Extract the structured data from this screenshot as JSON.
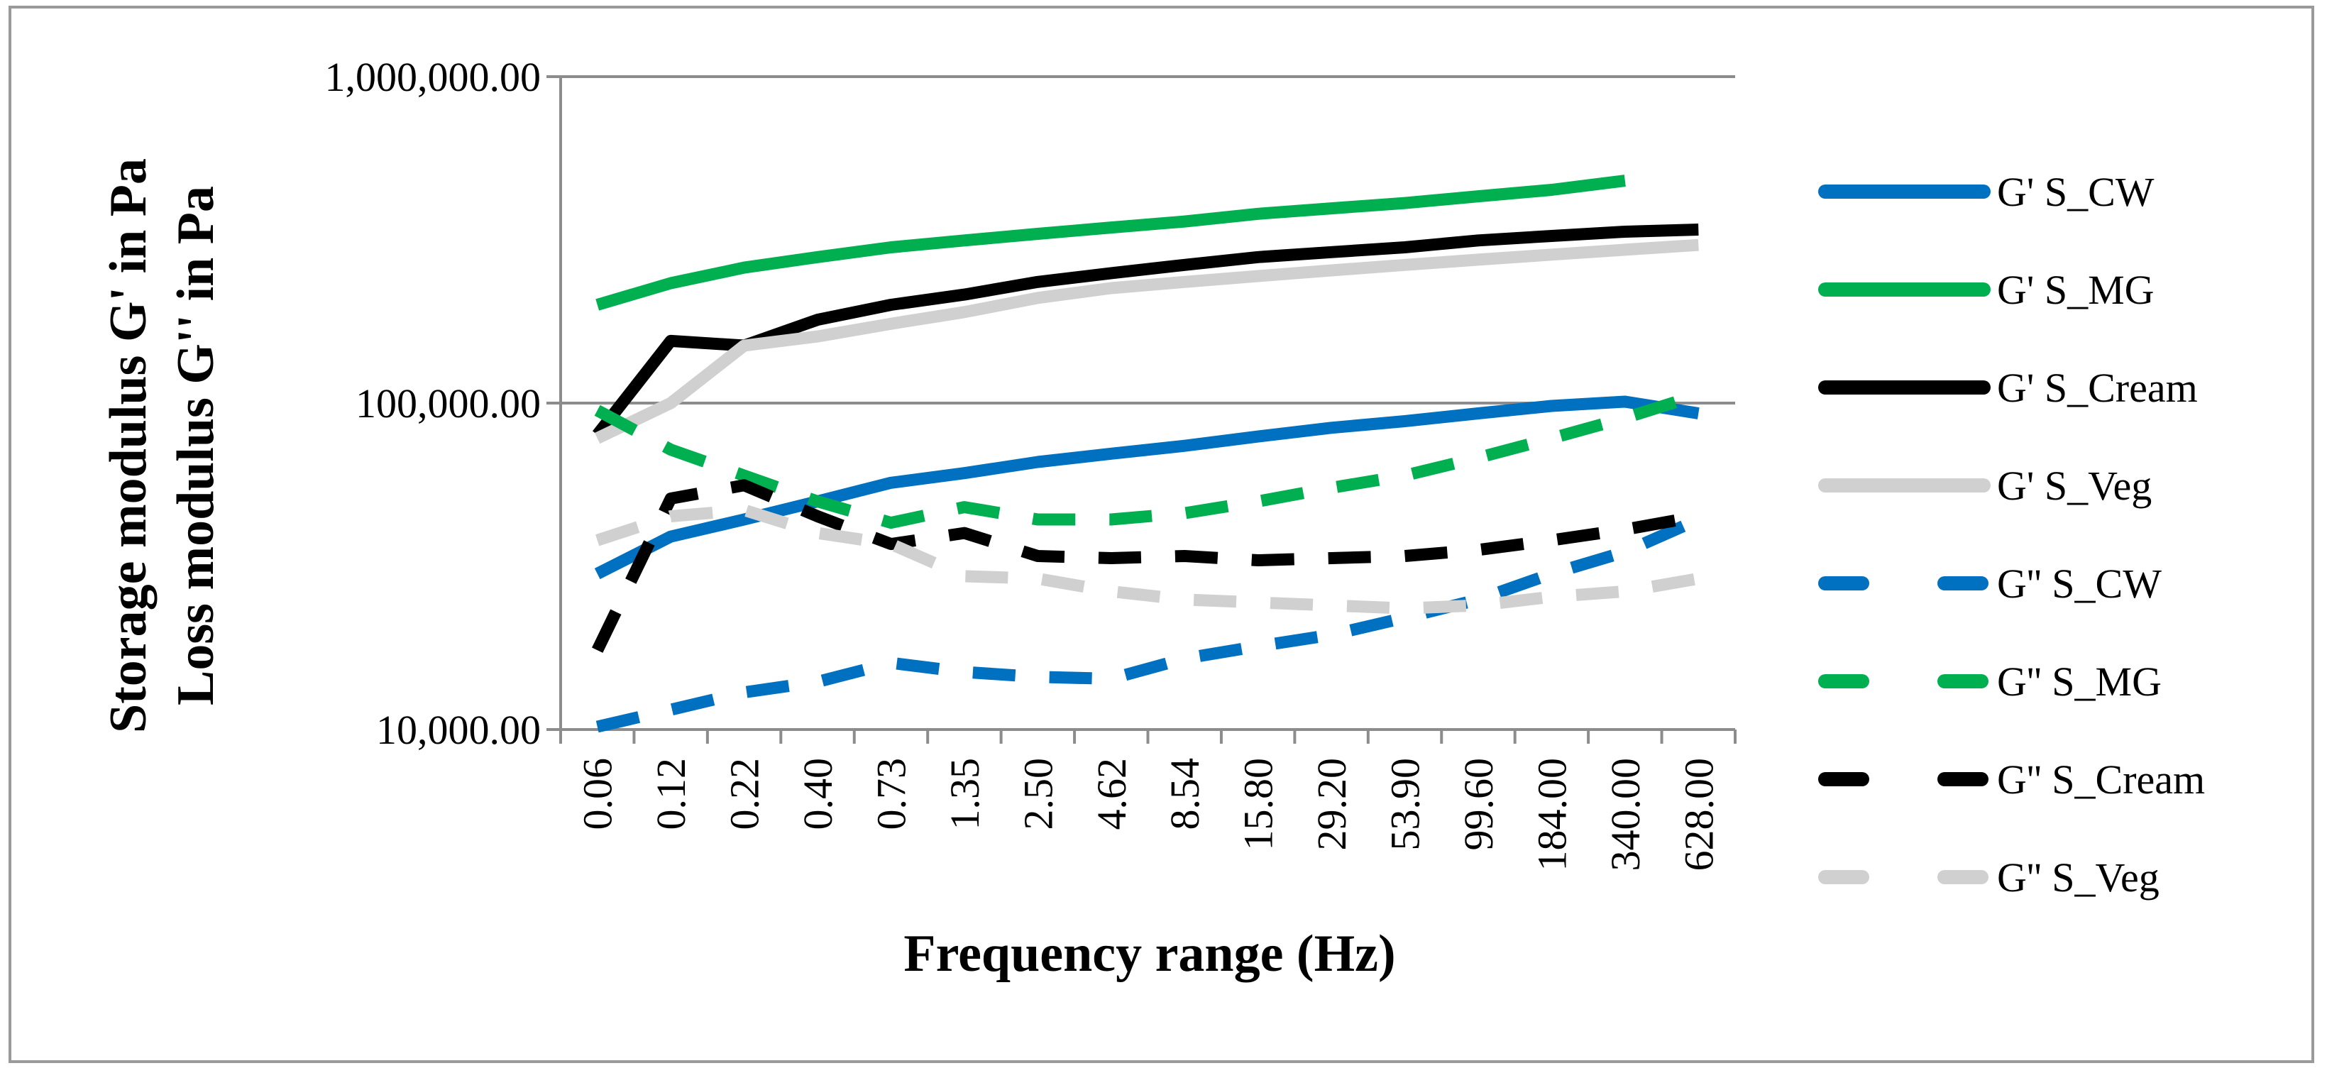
{
  "chart_data": {
    "type": "line",
    "title": "",
    "xlabel": "Frequency range (Hz)",
    "ylabel_lines": [
      "Storage modulus  G' in Pa",
      "Loss modulus G'' in Pa"
    ],
    "yscale": "log",
    "ylim": [
      10000,
      1000000
    ],
    "yticks": [
      {
        "value": 10000,
        "label": "10,000.00"
      },
      {
        "value": 100000,
        "label": "100,000.00"
      },
      {
        "value": 1000000,
        "label": "1,000,000.00"
      }
    ],
    "grid": "horizontal",
    "legend_position": "right",
    "categories": [
      "0.06",
      "0.12",
      "0.22",
      "0.40",
      "0.73",
      "1.35",
      "2.50",
      "4.62",
      "8.54",
      "15.80",
      "29.20",
      "53.90",
      "99.60",
      "184.00",
      "340.00",
      "628.00"
    ],
    "series": [
      {
        "name": "G' S_CW",
        "color": "#0070C0",
        "dash": "solid",
        "values": [
          30000,
          39000,
          44000,
          50000,
          57000,
          61000,
          66000,
          70000,
          74000,
          79000,
          84000,
          88000,
          93000,
          98000,
          101000,
          93000
        ]
      },
      {
        "name": "G' S_MG",
        "color": "#00B050",
        "dash": "solid",
        "values": [
          200000,
          233000,
          260000,
          280000,
          300000,
          315000,
          330000,
          345000,
          360000,
          380000,
          395000,
          410000,
          430000,
          450000,
          480000,
          null
        ]
      },
      {
        "name": "G' S_Cream",
        "color": "#000000",
        "dash": "solid",
        "values": [
          80000,
          155000,
          150000,
          180000,
          200000,
          215000,
          235000,
          250000,
          265000,
          280000,
          290000,
          300000,
          315000,
          325000,
          335000,
          340000
        ]
      },
      {
        "name": " G' S_Veg",
        "color": "#D0D0D0",
        "dash": "solid",
        "values": [
          78000,
          100000,
          150000,
          160000,
          175000,
          190000,
          210000,
          225000,
          235000,
          245000,
          255000,
          265000,
          275000,
          285000,
          295000,
          305000
        ]
      },
      {
        "name": "G'' S_CW",
        "color": "#0070C0",
        "dash": "dashed",
        "values": [
          10200,
          11500,
          13000,
          14000,
          16000,
          15000,
          14500,
          14300,
          16500,
          18000,
          19500,
          22000,
          25000,
          30000,
          35000,
          44000
        ]
      },
      {
        "name": "G'' S_MG",
        "color": "#00B050",
        "dash": "dashed",
        "values": [
          95000,
          72000,
          60000,
          50000,
          43000,
          48000,
          44000,
          44000,
          46000,
          50000,
          55000,
          60000,
          68000,
          78000,
          90000,
          106000
        ]
      },
      {
        "name": "G'' S_Cream",
        "color": "#000000",
        "dash": "dashed",
        "values": [
          17500,
          51000,
          56000,
          45000,
          37000,
          40000,
          34000,
          33500,
          34000,
          33000,
          33500,
          34000,
          35500,
          38000,
          41000,
          45000
        ]
      },
      {
        "name": "G'' S_Veg",
        "color": "#D0D0D0",
        "dash": "dashed",
        "values": [
          38000,
          45000,
          47000,
          40000,
          37000,
          29500,
          29000,
          26500,
          25000,
          24500,
          24000,
          23500,
          24000,
          25500,
          26500,
          29000
        ]
      }
    ]
  }
}
